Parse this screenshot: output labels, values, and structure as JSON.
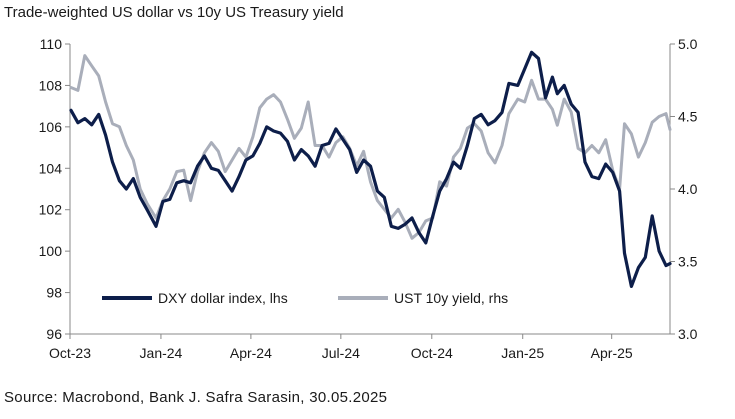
{
  "title": "Trade-weighted US dollar vs 10y US Treasury yield",
  "source": "Source: Macrobond, Bank J. Safra Sarasin, 30.05.2025",
  "chart_data": {
    "type": "line",
    "title": "Trade-weighted US dollar vs 10y US Treasury yield",
    "x_range": [
      "2023-10-01",
      "2025-05-30"
    ],
    "x_ticks": [
      {
        "date": "2023-10-01",
        "label": "Oct-23"
      },
      {
        "date": "2024-01-01",
        "label": "Jan-24"
      },
      {
        "date": "2024-04-01",
        "label": "Apr-24"
      },
      {
        "date": "2024-07-01",
        "label": "Jul-24"
      },
      {
        "date": "2024-10-01",
        "label": "Oct-24"
      },
      {
        "date": "2025-01-01",
        "label": "Jan-25"
      },
      {
        "date": "2025-04-01",
        "label": "Apr-25"
      }
    ],
    "y_left": {
      "min": 96,
      "max": 110,
      "ticks": [
        96,
        98,
        100,
        102,
        104,
        106,
        108,
        110
      ]
    },
    "y_right": {
      "min": 3.0,
      "max": 5.0,
      "ticks": [
        "3.0",
        "3.5",
        "4.0",
        "4.5",
        "5.0"
      ]
    },
    "grid": false,
    "legend_position": "bottom-left",
    "series": [
      {
        "name": "DXY dollar index, lhs",
        "axis": "left",
        "color": "#0d1e4a",
        "points": [
          [
            "2023-10-02",
            106.8
          ],
          [
            "2023-10-09",
            106.2
          ],
          [
            "2023-10-16",
            106.4
          ],
          [
            "2023-10-23",
            106.1
          ],
          [
            "2023-10-30",
            106.6
          ],
          [
            "2023-11-06",
            105.6
          ],
          [
            "2023-11-13",
            104.3
          ],
          [
            "2023-11-20",
            103.4
          ],
          [
            "2023-11-27",
            103.0
          ],
          [
            "2023-12-04",
            103.5
          ],
          [
            "2023-12-11",
            102.6
          ],
          [
            "2023-12-18",
            102.0
          ],
          [
            "2023-12-27",
            101.2
          ],
          [
            "2024-01-03",
            102.4
          ],
          [
            "2024-01-10",
            102.5
          ],
          [
            "2024-01-17",
            103.3
          ],
          [
            "2024-01-24",
            103.4
          ],
          [
            "2024-01-31",
            103.3
          ],
          [
            "2024-02-07",
            104.1
          ],
          [
            "2024-02-14",
            104.6
          ],
          [
            "2024-02-21",
            104.0
          ],
          [
            "2024-02-28",
            103.9
          ],
          [
            "2024-03-06",
            103.4
          ],
          [
            "2024-03-13",
            102.9
          ],
          [
            "2024-03-20",
            103.6
          ],
          [
            "2024-03-27",
            104.4
          ],
          [
            "2024-04-03",
            104.6
          ],
          [
            "2024-04-10",
            105.2
          ],
          [
            "2024-04-17",
            106.0
          ],
          [
            "2024-04-24",
            105.8
          ],
          [
            "2024-05-01",
            105.7
          ],
          [
            "2024-05-08",
            105.3
          ],
          [
            "2024-05-15",
            104.4
          ],
          [
            "2024-05-22",
            104.9
          ],
          [
            "2024-05-29",
            104.6
          ],
          [
            "2024-06-05",
            104.1
          ],
          [
            "2024-06-12",
            105.1
          ],
          [
            "2024-06-19",
            105.2
          ],
          [
            "2024-06-26",
            105.9
          ],
          [
            "2024-07-03",
            105.4
          ],
          [
            "2024-07-10",
            104.9
          ],
          [
            "2024-07-17",
            103.8
          ],
          [
            "2024-07-24",
            104.4
          ],
          [
            "2024-07-31",
            104.1
          ],
          [
            "2024-08-07",
            102.9
          ],
          [
            "2024-08-14",
            102.6
          ],
          [
            "2024-08-21",
            101.2
          ],
          [
            "2024-08-28",
            101.1
          ],
          [
            "2024-09-04",
            101.3
          ],
          [
            "2024-09-11",
            101.6
          ],
          [
            "2024-09-18",
            100.9
          ],
          [
            "2024-09-25",
            100.4
          ],
          [
            "2024-10-02",
            101.7
          ],
          [
            "2024-10-09",
            102.9
          ],
          [
            "2024-10-16",
            103.5
          ],
          [
            "2024-10-23",
            104.3
          ],
          [
            "2024-10-30",
            104.0
          ],
          [
            "2024-11-06",
            105.1
          ],
          [
            "2024-11-13",
            106.4
          ],
          [
            "2024-11-20",
            106.6
          ],
          [
            "2024-11-27",
            106.1
          ],
          [
            "2024-12-04",
            106.3
          ],
          [
            "2024-12-11",
            106.7
          ],
          [
            "2024-12-18",
            108.1
          ],
          [
            "2024-12-27",
            108.0
          ],
          [
            "2025-01-03",
            108.8
          ],
          [
            "2025-01-10",
            109.6
          ],
          [
            "2025-01-17",
            109.3
          ],
          [
            "2025-01-24",
            107.4
          ],
          [
            "2025-01-31",
            108.4
          ],
          [
            "2025-02-05",
            107.6
          ],
          [
            "2025-02-12",
            108.0
          ],
          [
            "2025-02-19",
            107.1
          ],
          [
            "2025-02-26",
            106.7
          ],
          [
            "2025-03-05",
            104.3
          ],
          [
            "2025-03-12",
            103.6
          ],
          [
            "2025-03-19",
            103.5
          ],
          [
            "2025-03-26",
            104.2
          ],
          [
            "2025-04-02",
            103.8
          ],
          [
            "2025-04-09",
            102.9
          ],
          [
            "2025-04-14",
            99.9
          ],
          [
            "2025-04-21",
            98.3
          ],
          [
            "2025-04-28",
            99.2
          ],
          [
            "2025-05-05",
            99.7
          ],
          [
            "2025-05-12",
            101.7
          ],
          [
            "2025-05-19",
            100.0
          ],
          [
            "2025-05-26",
            99.3
          ],
          [
            "2025-05-30",
            99.4
          ]
        ]
      },
      {
        "name": "UST 10y yield, rhs",
        "axis": "right",
        "color": "#a9aeba",
        "points": [
          [
            "2023-10-02",
            4.7
          ],
          [
            "2023-10-09",
            4.68
          ],
          [
            "2023-10-16",
            4.92
          ],
          [
            "2023-10-23",
            4.85
          ],
          [
            "2023-10-30",
            4.78
          ],
          [
            "2023-11-06",
            4.6
          ],
          [
            "2023-11-13",
            4.45
          ],
          [
            "2023-11-20",
            4.43
          ],
          [
            "2023-11-27",
            4.3
          ],
          [
            "2023-12-04",
            4.2
          ],
          [
            "2023-12-11",
            4.0
          ],
          [
            "2023-12-18",
            3.9
          ],
          [
            "2023-12-27",
            3.8
          ],
          [
            "2024-01-03",
            3.92
          ],
          [
            "2024-01-10",
            4.0
          ],
          [
            "2024-01-17",
            4.12
          ],
          [
            "2024-01-24",
            4.13
          ],
          [
            "2024-01-31",
            3.92
          ],
          [
            "2024-02-07",
            4.12
          ],
          [
            "2024-02-14",
            4.25
          ],
          [
            "2024-02-21",
            4.32
          ],
          [
            "2024-02-28",
            4.26
          ],
          [
            "2024-03-06",
            4.12
          ],
          [
            "2024-03-13",
            4.2
          ],
          [
            "2024-03-20",
            4.28
          ],
          [
            "2024-03-27",
            4.22
          ],
          [
            "2024-04-03",
            4.36
          ],
          [
            "2024-04-10",
            4.56
          ],
          [
            "2024-04-17",
            4.62
          ],
          [
            "2024-04-24",
            4.65
          ],
          [
            "2024-05-01",
            4.6
          ],
          [
            "2024-05-08",
            4.48
          ],
          [
            "2024-05-15",
            4.35
          ],
          [
            "2024-05-22",
            4.42
          ],
          [
            "2024-05-29",
            4.6
          ],
          [
            "2024-06-05",
            4.3
          ],
          [
            "2024-06-12",
            4.3
          ],
          [
            "2024-06-19",
            4.22
          ],
          [
            "2024-06-26",
            4.32
          ],
          [
            "2024-07-03",
            4.36
          ],
          [
            "2024-07-10",
            4.28
          ],
          [
            "2024-07-17",
            4.16
          ],
          [
            "2024-07-24",
            4.26
          ],
          [
            "2024-07-31",
            4.05
          ],
          [
            "2024-08-07",
            3.92
          ],
          [
            "2024-08-14",
            3.86
          ],
          [
            "2024-08-21",
            3.8
          ],
          [
            "2024-08-28",
            3.86
          ],
          [
            "2024-09-04",
            3.77
          ],
          [
            "2024-09-11",
            3.66
          ],
          [
            "2024-09-18",
            3.7
          ],
          [
            "2024-09-25",
            3.78
          ],
          [
            "2024-10-02",
            3.8
          ],
          [
            "2024-10-09",
            4.05
          ],
          [
            "2024-10-16",
            4.02
          ],
          [
            "2024-10-23",
            4.22
          ],
          [
            "2024-10-30",
            4.28
          ],
          [
            "2024-11-06",
            4.42
          ],
          [
            "2024-11-13",
            4.45
          ],
          [
            "2024-11-20",
            4.4
          ],
          [
            "2024-11-27",
            4.25
          ],
          [
            "2024-12-04",
            4.18
          ],
          [
            "2024-12-11",
            4.3
          ],
          [
            "2024-12-18",
            4.52
          ],
          [
            "2024-12-27",
            4.62
          ],
          [
            "2025-01-03",
            4.6
          ],
          [
            "2025-01-10",
            4.75
          ],
          [
            "2025-01-17",
            4.62
          ],
          [
            "2025-01-24",
            4.62
          ],
          [
            "2025-01-31",
            4.55
          ],
          [
            "2025-02-05",
            4.44
          ],
          [
            "2025-02-12",
            4.62
          ],
          [
            "2025-02-19",
            4.53
          ],
          [
            "2025-02-26",
            4.28
          ],
          [
            "2025-03-05",
            4.25
          ],
          [
            "2025-03-12",
            4.3
          ],
          [
            "2025-03-19",
            4.25
          ],
          [
            "2025-03-26",
            4.34
          ],
          [
            "2025-04-02",
            4.13
          ],
          [
            "2025-04-09",
            4.0
          ],
          [
            "2025-04-14",
            4.45
          ],
          [
            "2025-04-21",
            4.38
          ],
          [
            "2025-04-28",
            4.22
          ],
          [
            "2025-05-05",
            4.32
          ],
          [
            "2025-05-12",
            4.46
          ],
          [
            "2025-05-19",
            4.5
          ],
          [
            "2025-05-26",
            4.52
          ],
          [
            "2025-05-30",
            4.41
          ]
        ]
      }
    ]
  }
}
